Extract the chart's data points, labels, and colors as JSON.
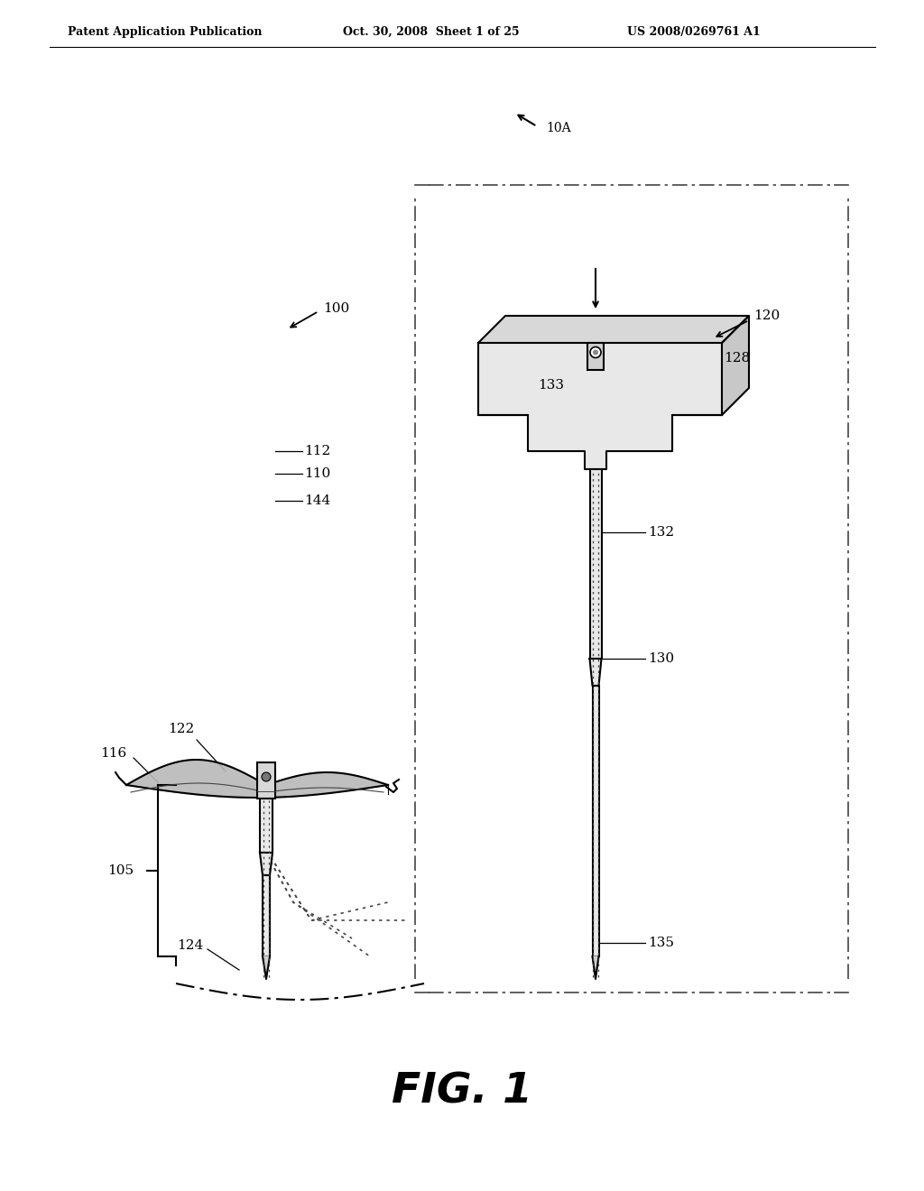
{
  "bg_color": "#ffffff",
  "header_left": "Patent Application Publication",
  "header_mid": "Oct. 30, 2008  Sheet 1 of 25",
  "header_right": "US 2008/0269761 A1",
  "fig_label": "FIG. 1"
}
